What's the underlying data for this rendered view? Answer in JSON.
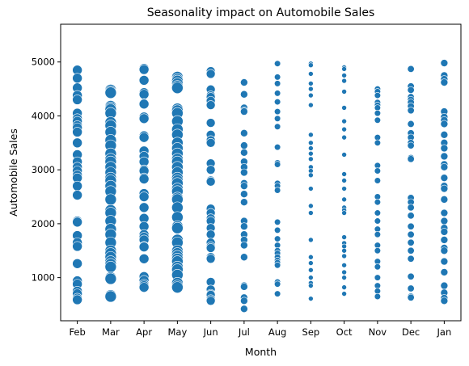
{
  "chart_data": {
    "type": "scatter",
    "title": "Seasonality impact on Automobile Sales",
    "xlabel": "Month",
    "ylabel": "Automobile Sales",
    "categories": [
      "Feb",
      "Mar",
      "Apr",
      "May",
      "Jun",
      "Jul",
      "Aug",
      "Sep",
      "Oct",
      "Nov",
      "Dec",
      "Jan"
    ],
    "ylim": [
      200,
      5700
    ],
    "yticks": [
      1000,
      2000,
      3000,
      4000,
      5000
    ],
    "grid": false,
    "marker_color": "#1f77b4",
    "marker_size_by_category": [
      6,
      7,
      6,
      7,
      5.5,
      4.5,
      3.8,
      3,
      3,
      3.8,
      4.2,
      4.5
    ],
    "points": {
      "Feb": [
        4850,
        4700,
        4520,
        4380,
        4300,
        4050,
        3950,
        3900,
        3820,
        3780,
        3700,
        3500,
        3280,
        3150,
        3050,
        2980,
        2900,
        2850,
        2700,
        2530,
        2050,
        2030,
        1780,
        1650,
        1580,
        1260,
        940,
        880,
        750,
        700,
        620,
        590
      ],
      "Mar": [
        4480,
        4450,
        4430,
        4180,
        4150,
        4120,
        4050,
        3880,
        3820,
        3700,
        3550,
        3450,
        3300,
        3200,
        3150,
        3050,
        2950,
        2850,
        2800,
        2700,
        2600,
        2450,
        2250,
        2200,
        2050,
        1900,
        1800,
        1650,
        1500,
        1450,
        1380,
        1300,
        1250,
        1200,
        1000,
        980,
        670,
        650
      ],
      "Apr": [
        4880,
        4860,
        4660,
        4430,
        4400,
        4230,
        4220,
        3980,
        3950,
        3630,
        3600,
        3350,
        3250,
        3150,
        3000,
        2980,
        2850,
        2830,
        2560,
        2500,
        2300,
        2100,
        1950,
        1800,
        1750,
        1700,
        1580,
        1570,
        1350,
        1020,
        950,
        880,
        850,
        820
      ],
      "May": [
        4720,
        4680,
        4650,
        4600,
        4550,
        4520,
        4130,
        4100,
        4050,
        3900,
        3750,
        3650,
        3500,
        3400,
        3300,
        3200,
        3150,
        3050,
        2950,
        2850,
        2800,
        2750,
        2650,
        2600,
        2480,
        2450,
        2300,
        2120,
        1950,
        1920,
        1700,
        1650,
        1500,
        1450,
        1400,
        1350,
        1300,
        1200,
        1150,
        1050,
        900,
        850,
        820
      ],
      "Jun": [
        4830,
        4780,
        4490,
        4380,
        4350,
        4280,
        4200,
        3870,
        3650,
        3550,
        3500,
        3120,
        3000,
        2800,
        2780,
        2280,
        2200,
        2100,
        2050,
        1920,
        1800,
        1650,
        1580,
        1550,
        1380,
        1350,
        920,
        780,
        700,
        680,
        600,
        570
      ],
      "Jul": [
        4630,
        4620,
        4400,
        4150,
        4100,
        4080,
        3680,
        3450,
        3320,
        3150,
        3050,
        2950,
        2750,
        2700,
        2550,
        2400,
        2050,
        1950,
        1800,
        1700,
        1600,
        1380,
        850,
        830,
        630,
        570,
        420
      ],
      "Aug": [
        4970,
        4720,
        4600,
        4420,
        4260,
        4080,
        3950,
        3800,
        3420,
        3130,
        3100,
        2750,
        2700,
        2620,
        2030,
        1880,
        1720,
        1600,
        1500,
        1450,
        1380,
        1320,
        1280,
        1230,
        920,
        880,
        700
      ],
      "Sep": [
        4970,
        4940,
        4780,
        4600,
        4500,
        4380,
        4200,
        3650,
        3500,
        3400,
        3300,
        3200,
        3050,
        2980,
        2900,
        2650,
        2330,
        2200,
        1700,
        1380,
        1270,
        1140,
        1000,
        900,
        850,
        610
      ],
      "Oct": [
        4900,
        4870,
        4750,
        4650,
        4450,
        4150,
        3900,
        3750,
        3600,
        3280,
        2920,
        2800,
        2650,
        2450,
        2300,
        2250,
        2200,
        1750,
        1640,
        1580,
        1500,
        1400,
        1230,
        1100,
        1000,
        820,
        700
      ],
      "Nov": [
        4500,
        4450,
        4380,
        4250,
        4200,
        4150,
        4050,
        3920,
        3600,
        3500,
        3080,
        2980,
        2800,
        2500,
        2400,
        2200,
        2050,
        1900,
        1800,
        1600,
        1500,
        1300,
        1200,
        1000,
        850,
        750,
        650
      ],
      "Dec": [
        4870,
        4550,
        4480,
        4350,
        4300,
        4250,
        4180,
        4100,
        3850,
        3680,
        3600,
        3500,
        3450,
        3220,
        3200,
        2480,
        2400,
        2300,
        2150,
        1950,
        1800,
        1650,
        1500,
        1350,
        1020,
        800,
        650,
        630
      ],
      "Jan": [
        4980,
        4750,
        4680,
        4620,
        4080,
        3980,
        3920,
        3850,
        3650,
        3500,
        3400,
        3250,
        3100,
        3050,
        2850,
        2700,
        2650,
        2450,
        2200,
        2050,
        1920,
        1850,
        1700,
        1550,
        1500,
        1300,
        1100,
        850,
        720,
        620,
        570
      ]
    }
  }
}
